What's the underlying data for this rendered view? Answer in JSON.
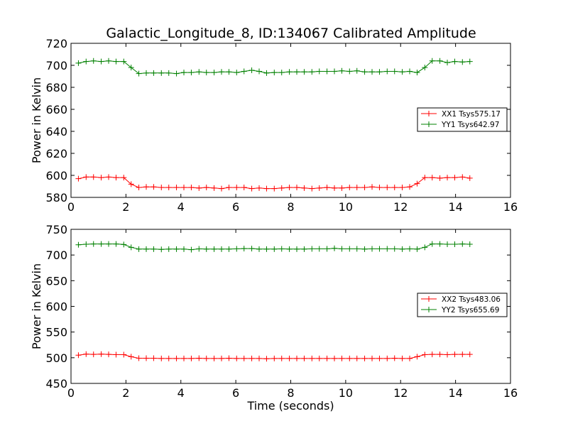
{
  "chart_data": [
    {
      "type": "line",
      "title": "Galactic_Longitude_8, ID:134067 Calibrated Amplitude",
      "xlabel": "",
      "ylabel": "Power in Kelvin",
      "xlim": [
        0,
        16
      ],
      "ylim": [
        580,
        720
      ],
      "xticks": [
        0,
        2,
        4,
        6,
        8,
        10,
        12,
        14,
        16
      ],
      "yticks": [
        580,
        600,
        620,
        640,
        660,
        680,
        700,
        720
      ],
      "grid": false,
      "legend_position": "center-right",
      "x": [
        0.27,
        0.55,
        0.82,
        1.1,
        1.37,
        1.64,
        1.92,
        2.19,
        2.47,
        2.74,
        3.01,
        3.29,
        3.56,
        3.84,
        4.11,
        4.38,
        4.66,
        4.93,
        5.21,
        5.48,
        5.75,
        6.03,
        6.3,
        6.58,
        6.85,
        7.12,
        7.4,
        7.67,
        7.95,
        8.22,
        8.49,
        8.77,
        9.04,
        9.32,
        9.59,
        9.86,
        10.14,
        10.41,
        10.69,
        10.96,
        11.23,
        11.51,
        11.78,
        12.06,
        12.33,
        12.6,
        12.88,
        13.15,
        13.43,
        13.7,
        13.97,
        14.25,
        14.52
      ],
      "series": [
        {
          "name": "XX1 Tsys575.17",
          "color": "#ff0000",
          "values": [
            597,
            598.5,
            598.5,
            598,
            598.5,
            598,
            598,
            592,
            589,
            589.5,
            589.5,
            589,
            589,
            589,
            589,
            589,
            588.5,
            589,
            588.5,
            588,
            589,
            589,
            589,
            588,
            588.5,
            588,
            588,
            588.5,
            589,
            589,
            588.5,
            588,
            588.5,
            589,
            588.5,
            588.5,
            589,
            589,
            589,
            589.5,
            589,
            589,
            589,
            589,
            589.5,
            592.5,
            598,
            598,
            597.5,
            598,
            598,
            598.5,
            597.5
          ]
        },
        {
          "name": "YY1 Tsys642.97",
          "color": "#008000",
          "values": [
            702,
            703.5,
            704,
            703.5,
            704,
            703.5,
            703.5,
            698,
            692.5,
            693,
            693,
            693,
            693,
            692.5,
            693.5,
            693.5,
            694,
            693.5,
            693.5,
            694,
            694,
            693.5,
            694.5,
            695.5,
            694.5,
            693,
            693.5,
            693.5,
            694,
            694,
            694,
            694,
            694.5,
            694.5,
            694.5,
            695,
            694.5,
            695,
            694,
            694,
            694,
            694.5,
            694.5,
            694,
            694.5,
            693.5,
            698,
            704,
            704,
            702.5,
            703.5,
            703,
            703.5
          ]
        }
      ]
    },
    {
      "type": "line",
      "title": "",
      "xlabel": "Time (seconds)",
      "ylabel": "Power in Kelvin",
      "xlim": [
        0,
        16
      ],
      "ylim": [
        450,
        750
      ],
      "xticks": [
        0,
        2,
        4,
        6,
        8,
        10,
        12,
        14,
        16
      ],
      "yticks": [
        450,
        500,
        550,
        600,
        650,
        700,
        750
      ],
      "grid": false,
      "legend_position": "center-right",
      "x": [
        0.27,
        0.55,
        0.82,
        1.1,
        1.37,
        1.64,
        1.92,
        2.19,
        2.47,
        2.74,
        3.01,
        3.29,
        3.56,
        3.84,
        4.11,
        4.38,
        4.66,
        4.93,
        5.21,
        5.48,
        5.75,
        6.03,
        6.3,
        6.58,
        6.85,
        7.12,
        7.4,
        7.67,
        7.95,
        8.22,
        8.49,
        8.77,
        9.04,
        9.32,
        9.59,
        9.86,
        10.14,
        10.41,
        10.69,
        10.96,
        11.23,
        11.51,
        11.78,
        12.06,
        12.33,
        12.6,
        12.88,
        13.15,
        13.43,
        13.7,
        13.97,
        14.25,
        14.52
      ],
      "series": [
        {
          "name": "XX2 Tsys483.06",
          "color": "#ff0000",
          "values": [
            505,
            507,
            506.5,
            507,
            506.5,
            506,
            506,
            502,
            499,
            499,
            499,
            498.5,
            498.5,
            498.5,
            498.5,
            498.5,
            499,
            498.5,
            498.5,
            498.5,
            499,
            498.5,
            498.5,
            498.5,
            498.5,
            498,
            498.5,
            498.5,
            498.5,
            498.5,
            498.5,
            498.5,
            498.5,
            498.5,
            498.5,
            498.5,
            498.5,
            498.5,
            498.5,
            498.5,
            498.5,
            498.5,
            499,
            498.5,
            498.5,
            502,
            506,
            506.5,
            506.5,
            506,
            506.5,
            506.5,
            506.5
          ]
        },
        {
          "name": "YY2 Tsys655.69",
          "color": "#008000",
          "values": [
            720,
            721,
            721.5,
            721.5,
            721.5,
            721.5,
            720.5,
            715,
            711.5,
            711.5,
            711.5,
            711,
            711.5,
            711.5,
            711.5,
            710.5,
            712,
            711.5,
            711.5,
            711.5,
            711.5,
            712,
            712.5,
            712.5,
            711.5,
            711.5,
            711.5,
            712,
            711.5,
            711.5,
            711.5,
            712,
            712,
            712,
            713,
            712,
            712,
            712,
            711.5,
            712,
            712,
            712,
            712,
            711.5,
            712,
            711.5,
            715,
            721.5,
            721.5,
            721,
            721,
            721.5,
            721
          ]
        }
      ]
    }
  ]
}
